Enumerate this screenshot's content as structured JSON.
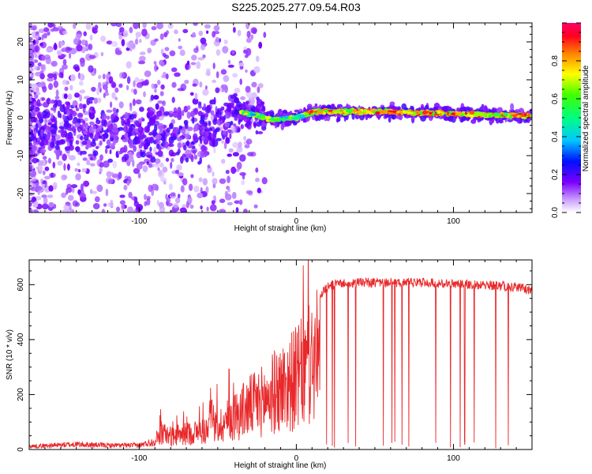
{
  "title": "S225.2025.277.09.54.R03",
  "chart_data": [
    {
      "type": "heatmap",
      "xlabel": "Height of straight line (km)",
      "ylabel": "Frequency (Hz)",
      "xlim": [
        -170,
        150
      ],
      "ylim": [
        -25,
        25
      ],
      "xticks": [
        -100,
        0,
        100
      ],
      "yticks": [
        -20,
        -10,
        0,
        10,
        20
      ],
      "ridge": {
        "x": [
          -170,
          -130,
          -100,
          -80,
          -60,
          -45,
          -35,
          -25,
          -15,
          0,
          10,
          30,
          60,
          90,
          120,
          150
        ],
        "freq": [
          -3,
          -3.5,
          -5,
          -5,
          -3,
          1,
          1.5,
          0.5,
          -0.5,
          0,
          1.5,
          1.7,
          1.5,
          1.2,
          0.8,
          0.5
        ]
      },
      "colorbar": {
        "label": "Normalized spectral amplitude",
        "ticks": [
          0.0,
          0.2,
          0.4,
          0.6,
          0.8
        ],
        "range": [
          0,
          1
        ]
      }
    },
    {
      "type": "line",
      "xlabel": "Height of straight line (km)",
      "ylabel": "SNR (10 * v/v)",
      "xlim": [
        -170,
        150
      ],
      "ylim": [
        0,
        690
      ],
      "xticks": [
        -100,
        0,
        100
      ],
      "yticks": [
        0,
        200,
        400,
        600
      ],
      "series": [
        {
          "color": "#e8282a",
          "envelope_x": [
            -170,
            -140,
            -120,
            -100,
            -90,
            -86,
            -80,
            -60,
            -50,
            -40,
            -30,
            -20,
            -15,
            -10,
            -5,
            0,
            5,
            10,
            15,
            20,
            25,
            40,
            60,
            80,
            100,
            120,
            140,
            150
          ],
          "envelope_y": [
            15,
            25,
            20,
            20,
            40,
            100,
            80,
            110,
            140,
            200,
            260,
            300,
            340,
            370,
            400,
            430,
            470,
            520,
            580,
            610,
            620,
            625,
            625,
            625,
            620,
            615,
            610,
            595
          ]
        }
      ]
    }
  ]
}
